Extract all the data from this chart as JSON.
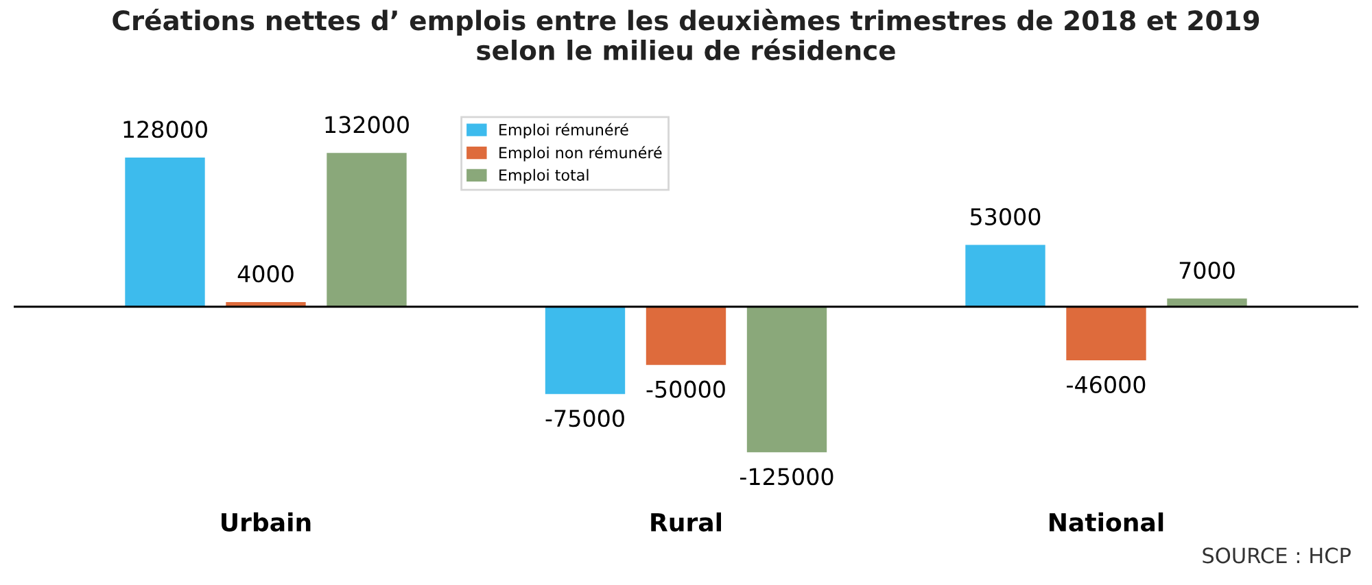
{
  "chart_data": {
    "type": "bar",
    "title": "Créations nettes d’ emplois entre les deuxièmes trimestres de 2018 et 2019\nselon le milieu de résidence",
    "categories": [
      "Urbain",
      "Rural",
      "National"
    ],
    "series": [
      {
        "name": "Emploi rémunéré",
        "color": "#3dbbed",
        "values": [
          128000,
          -75000,
          53000
        ]
      },
      {
        "name": "Emploi non rémunéré",
        "color": "#de6b3c",
        "values": [
          4000,
          -50000,
          -46000
        ]
      },
      {
        "name": "Emploi total",
        "color": "#8aa87a",
        "values": [
          132000,
          -125000,
          7000
        ]
      }
    ],
    "data_labels": true,
    "legend": "top",
    "grid": false,
    "annotations": [
      "SOURCE : HCP"
    ]
  }
}
